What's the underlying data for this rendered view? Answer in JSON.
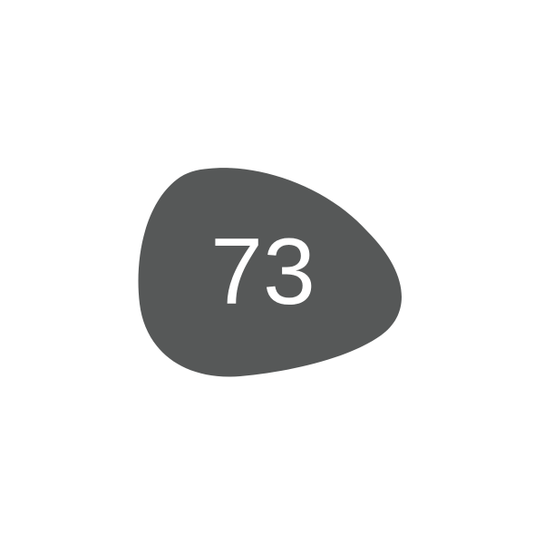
{
  "badge": {
    "number": "73",
    "shape": "pebble",
    "fill_color": "#565858",
    "text_color": "#ffffff"
  },
  "background_color": "#ffffff"
}
